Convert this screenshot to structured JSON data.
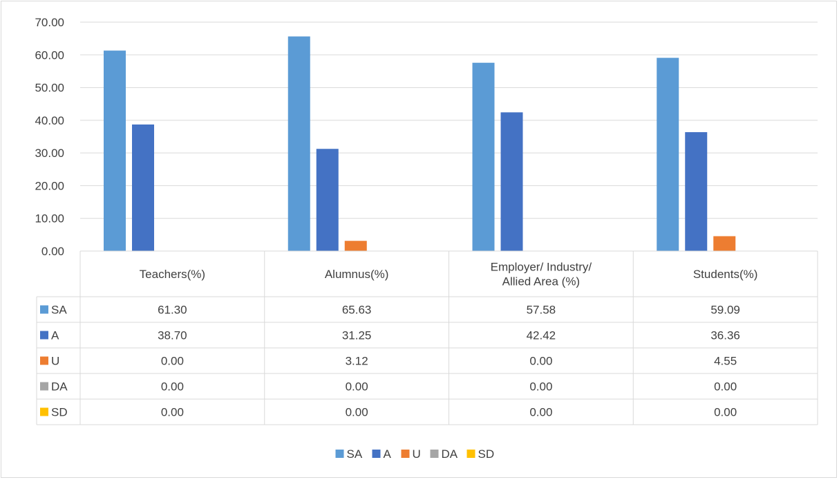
{
  "chart_data": {
    "type": "bar",
    "categories": [
      "Teachers(%)",
      "Alumnus(%)",
      "Employer/ Industry/ Allied Area (%)",
      "Students(%)"
    ],
    "category_lines": [
      [
        "Teachers(%)"
      ],
      [
        "Alumnus(%)"
      ],
      [
        "Employer/ Industry/",
        "Allied Area (%)"
      ],
      [
        "Students(%)"
      ]
    ],
    "series": [
      {
        "name": "SA",
        "color": "#5b9bd5",
        "values": [
          61.3,
          65.63,
          57.58,
          59.09
        ]
      },
      {
        "name": "A",
        "color": "#4472c4",
        "values": [
          38.7,
          31.25,
          42.42,
          36.36
        ]
      },
      {
        "name": "U",
        "color": "#ed7d31",
        "values": [
          0.0,
          3.12,
          0.0,
          4.55
        ]
      },
      {
        "name": "DA",
        "color": "#a5a5a5",
        "values": [
          0.0,
          0.0,
          0.0,
          0.0
        ]
      },
      {
        "name": "SD",
        "color": "#ffc000",
        "values": [
          0.0,
          0.0,
          0.0,
          0.0
        ]
      }
    ],
    "ylim": [
      0,
      70
    ],
    "yticks": [
      "0.00",
      "10.00",
      "20.00",
      "30.00",
      "40.00",
      "50.00",
      "60.00",
      "70.00"
    ],
    "grid": true,
    "data_table": true,
    "legend": "bottom-center",
    "title": "",
    "xlabel": "",
    "ylabel": ""
  }
}
